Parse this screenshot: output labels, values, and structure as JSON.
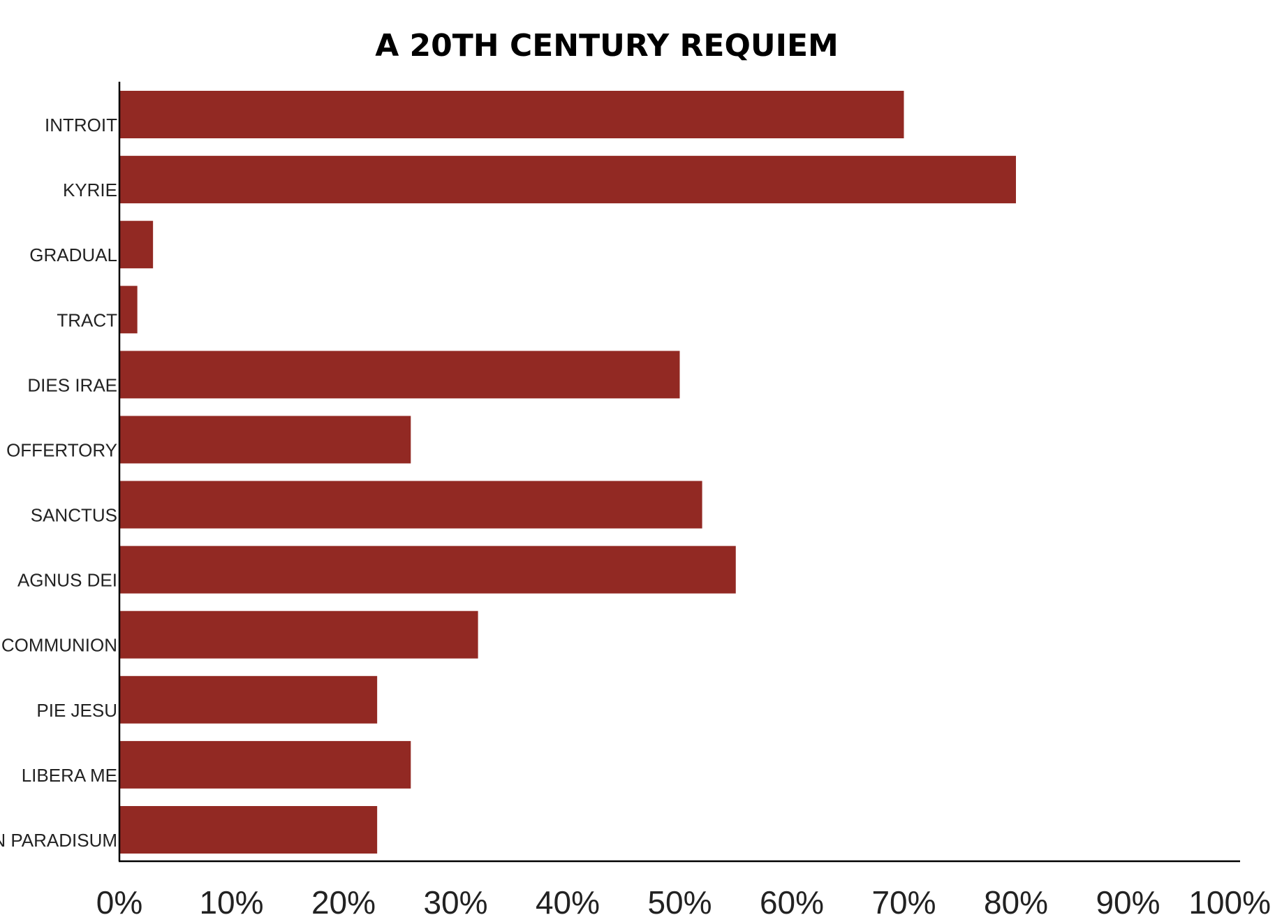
{
  "colors": {
    "bar": "#922923",
    "axis": "#000000",
    "text": "#222222",
    "background": "#ffffff"
  },
  "chart_data": {
    "type": "bar",
    "orientation": "horizontal",
    "title": "A 20TH CENTURY REQUIEM",
    "xlabel": "",
    "ylabel": "",
    "categories": [
      "INTROIT",
      "KYRIE",
      "GRADUAL",
      "TRACT",
      "DIES IRAE",
      "OFFERTORY",
      "SANCTUS",
      "AGNUS DEI",
      "COMMUNION",
      "PIE JESU",
      "LIBERA ME",
      "IN PARADISUM"
    ],
    "values": [
      70,
      80,
      3,
      1.6,
      50,
      26,
      52,
      55,
      32,
      23,
      26,
      23
    ],
    "xlim": [
      0,
      100
    ],
    "xticks": [
      0,
      10,
      20,
      30,
      40,
      50,
      60,
      70,
      80,
      90,
      100
    ],
    "xtick_labels": [
      "0%",
      "10%",
      "20%",
      "30%",
      "40%",
      "50%",
      "60%",
      "70%",
      "80%",
      "90%",
      "100%"
    ],
    "grid": false,
    "legend": "none"
  }
}
